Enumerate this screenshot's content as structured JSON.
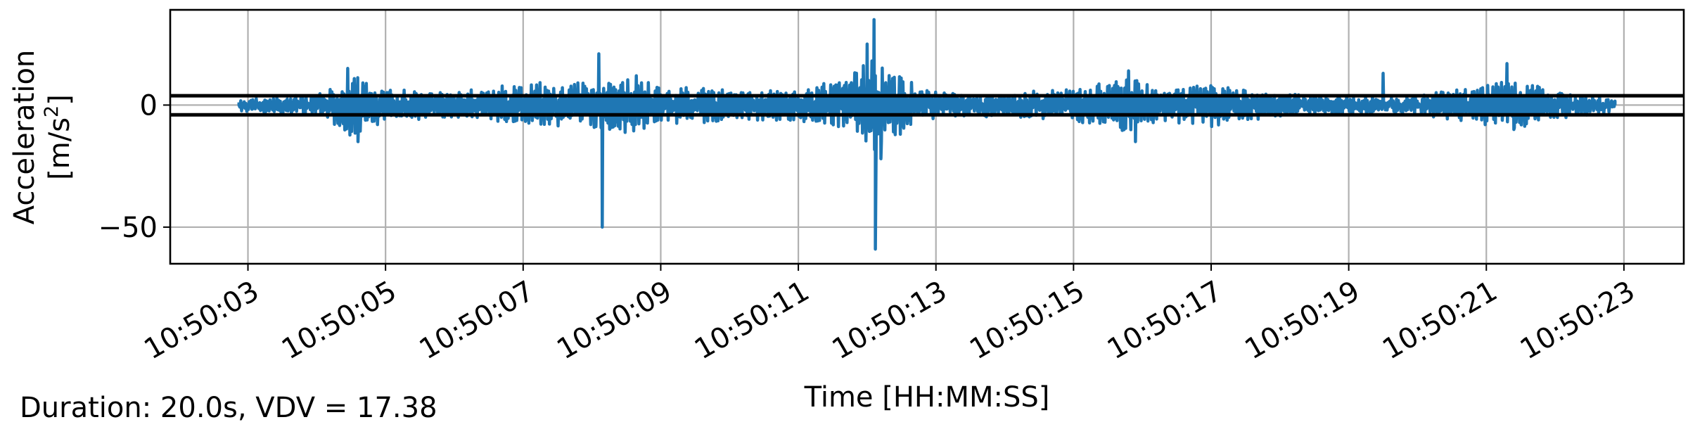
{
  "chart_data": {
    "type": "line",
    "title": "",
    "xlabel": "Time [HH:MM:SS]",
    "ylabel_line1": "Acceleration",
    "ylabel_unit_prefix": "[m/s",
    "ylabel_unit_exp": "2",
    "ylabel_unit_suffix": "]",
    "footnote": "Duration: 20.0s, VDV = 17.38",
    "x_range_seconds": [
      -1.13,
      20.87
    ],
    "ylim": [
      -65,
      39
    ],
    "grid": true,
    "x_ticks": [
      {
        "t": 0,
        "label": "10:50:03"
      },
      {
        "t": 2,
        "label": "10:50:05"
      },
      {
        "t": 4,
        "label": "10:50:07"
      },
      {
        "t": 6,
        "label": "10:50:09"
      },
      {
        "t": 8,
        "label": "10:50:11"
      },
      {
        "t": 10,
        "label": "10:50:13"
      },
      {
        "t": 12,
        "label": "10:50:15"
      },
      {
        "t": 14,
        "label": "10:50:17"
      },
      {
        "t": 16,
        "label": "10:50:19"
      },
      {
        "t": 18,
        "label": "10:50:21"
      },
      {
        "t": 20,
        "label": "10:50:23"
      }
    ],
    "y_ticks": [
      {
        "v": 0,
        "label": "0"
      },
      {
        "v": -50,
        "label": "−50"
      }
    ],
    "threshold_lines": [
      {
        "name": "upper-threshold",
        "value": 3.8,
        "color": "#000000"
      },
      {
        "name": "lower-threshold",
        "value": -4.0,
        "color": "#000000"
      }
    ],
    "series": [
      {
        "name": "acceleration",
        "color": "#1f77b4",
        "t_start": -0.13,
        "t_end": 19.87,
        "approx_points": [
          {
            "t": -0.13,
            "v": 0
          },
          {
            "t": 1.45,
            "v": 15
          },
          {
            "t": 1.6,
            "v": -15
          },
          {
            "t": 5.1,
            "v": 21
          },
          {
            "t": 5.15,
            "v": -50
          },
          {
            "t": 9.0,
            "v": 25
          },
          {
            "t": 9.1,
            "v": 35
          },
          {
            "t": 9.12,
            "v": -59
          },
          {
            "t": 9.2,
            "v": -22
          },
          {
            "t": 12.8,
            "v": 14
          },
          {
            "t": 12.9,
            "v": -15
          },
          {
            "t": 16.5,
            "v": 13
          },
          {
            "t": 18.3,
            "v": 17
          },
          {
            "t": 18.4,
            "v": -10
          },
          {
            "t": 19.87,
            "v": 0
          }
        ],
        "envelope": [
          {
            "t": 0.0,
            "amp": 2.5
          },
          {
            "t": 1.0,
            "amp": 4
          },
          {
            "t": 1.5,
            "amp": 13
          },
          {
            "t": 2.0,
            "amp": 6
          },
          {
            "t": 3.0,
            "amp": 5
          },
          {
            "t": 4.0,
            "amp": 8
          },
          {
            "t": 5.0,
            "amp": 10
          },
          {
            "t": 5.6,
            "amp": 12
          },
          {
            "t": 6.0,
            "amp": 8
          },
          {
            "t": 7.0,
            "amp": 6
          },
          {
            "t": 8.0,
            "amp": 6
          },
          {
            "t": 8.7,
            "amp": 10
          },
          {
            "t": 9.1,
            "amp": 20
          },
          {
            "t": 9.6,
            "amp": 10
          },
          {
            "t": 10.0,
            "amp": 5
          },
          {
            "t": 11.0,
            "amp": 4
          },
          {
            "t": 12.0,
            "amp": 7
          },
          {
            "t": 12.8,
            "amp": 11
          },
          {
            "t": 13.3,
            "amp": 6
          },
          {
            "t": 14.0,
            "amp": 9
          },
          {
            "t": 14.8,
            "amp": 5
          },
          {
            "t": 16.0,
            "amp": 3
          },
          {
            "t": 17.0,
            "amp": 4
          },
          {
            "t": 18.0,
            "amp": 8
          },
          {
            "t": 18.4,
            "amp": 10
          },
          {
            "t": 19.0,
            "amp": 5
          },
          {
            "t": 19.87,
            "amp": 3
          }
        ]
      }
    ]
  }
}
